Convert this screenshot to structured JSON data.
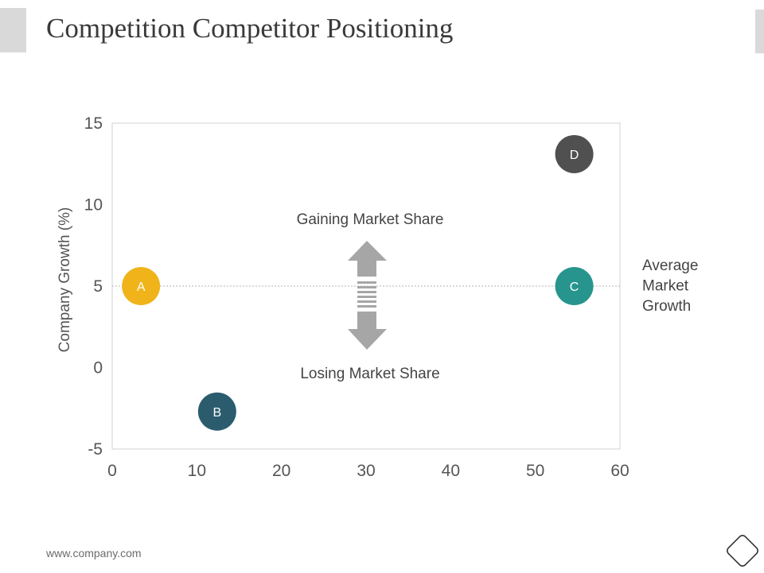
{
  "slide": {
    "title": "Competition Competitor Positioning",
    "footer_url": "www.company.com"
  },
  "chart_data": {
    "type": "scatter",
    "title": "",
    "xlabel": "",
    "ylabel": "Company Growth (%)",
    "xlim": [
      0,
      60
    ],
    "ylim": [
      -5,
      15
    ],
    "x_ticks": [
      0,
      10,
      20,
      30,
      40,
      50,
      60
    ],
    "y_ticks": [
      -5,
      0,
      5,
      10,
      15
    ],
    "grid": false,
    "points": [
      {
        "label": "A",
        "x": 3.4,
        "y": 5.0,
        "color": "#f0b31a"
      },
      {
        "label": "B",
        "x": 12.4,
        "y": -2.7,
        "color": "#2b5c6e"
      },
      {
        "label": "C",
        "x": 54.6,
        "y": 5.0,
        "color": "#27958d"
      },
      {
        "label": "D",
        "x": 54.6,
        "y": 13.1,
        "color": "#505050"
      }
    ],
    "reference_line": {
      "y": 5,
      "label": "Average Market Growth",
      "label_lines": [
        "Average",
        "Market",
        "Growth"
      ]
    },
    "annotations": {
      "up_label": "Gaining Market Share",
      "down_label": "Losing Market Share",
      "arrow_color": "#a6a6a6"
    }
  }
}
